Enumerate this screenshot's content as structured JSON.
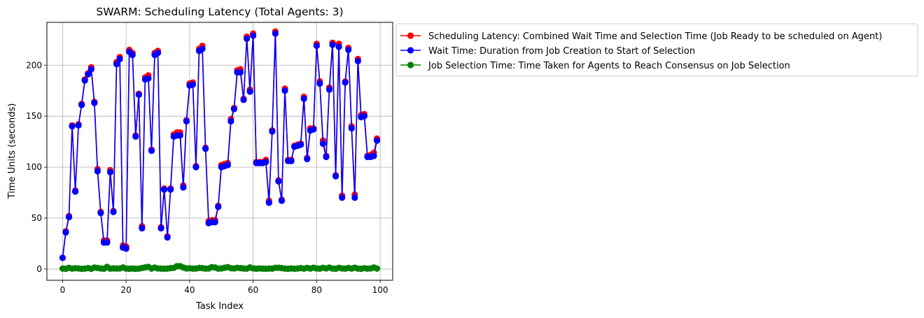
{
  "chart_data": {
    "type": "line",
    "title": "SWARM: Scheduling Latency (Total Agents: 3)",
    "xlabel": "Task Index",
    "ylabel": "Time Units (seconds)",
    "xlim": [
      -4.95,
      103.95
    ],
    "ylim": [
      -11,
      242
    ],
    "xticks": [
      0,
      20,
      40,
      60,
      80,
      100
    ],
    "yticks": [
      0,
      50,
      100,
      150,
      200
    ],
    "grid": true,
    "legend_placement": "outside-upper-right",
    "x": [
      0,
      1,
      2,
      3,
      4,
      5,
      6,
      7,
      8,
      9,
      10,
      11,
      12,
      13,
      14,
      15,
      16,
      17,
      18,
      19,
      20,
      21,
      22,
      23,
      24,
      25,
      26,
      27,
      28,
      29,
      30,
      31,
      32,
      33,
      34,
      35,
      36,
      37,
      38,
      39,
      40,
      41,
      42,
      43,
      44,
      45,
      46,
      47,
      48,
      49,
      50,
      51,
      52,
      53,
      54,
      55,
      56,
      57,
      58,
      59,
      60,
      61,
      62,
      63,
      64,
      65,
      66,
      67,
      68,
      69,
      70,
      71,
      72,
      73,
      74,
      75,
      76,
      77,
      78,
      79,
      80,
      81,
      82,
      83,
      84,
      85,
      86,
      87,
      88,
      89,
      90,
      91,
      92,
      93,
      94,
      95,
      96,
      97,
      98,
      99
    ],
    "series": [
      {
        "name": "Scheduling Latency: Combined Wait Time and Selection Time (Job Ready to be scheduled on Agent)",
        "color": "#ff0000",
        "values": [
          11,
          37,
          52,
          141,
          77,
          142,
          162,
          186,
          192,
          198,
          164,
          98,
          56,
          28,
          28,
          97,
          57,
          203,
          208,
          23,
          22,
          215,
          212,
          131,
          172,
          42,
          188,
          190,
          117,
          212,
          214,
          41,
          79,
          32,
          79,
          132,
          134,
          134,
          82,
          146,
          182,
          183,
          101,
          216,
          219,
          119,
          47,
          48,
          48,
          62,
          102,
          103,
          104,
          147,
          158,
          195,
          196,
          167,
          228,
          176,
          231,
          105,
          105,
          105,
          107,
          67,
          136,
          233,
          87,
          68,
          177,
          107,
          107,
          121,
          122,
          123,
          169,
          109,
          138,
          138,
          221,
          184,
          126,
          111,
          178,
          222,
          92,
          221,
          72,
          184,
          217,
          140,
          73,
          206,
          151,
          152,
          111,
          112,
          114,
          128
        ]
      },
      {
        "name": "Wait Time: Duration from Job Creation to Start of Selection",
        "color": "#0000ff",
        "values": [
          11,
          36,
          51,
          140,
          76,
          141,
          161,
          185,
          191,
          196,
          163,
          96,
          55,
          26,
          26,
          95,
          56,
          201,
          206,
          21,
          20,
          213,
          210,
          130,
          171,
          40,
          186,
          187,
          116,
          210,
          212,
          40,
          78,
          31,
          78,
          130,
          131,
          131,
          80,
          145,
          180,
          181,
          100,
          214,
          216,
          118,
          45,
          46,
          46,
          61,
          100,
          101,
          102,
          145,
          157,
          193,
          193,
          166,
          226,
          174,
          229,
          104,
          104,
          104,
          105,
          65,
          135,
          231,
          86,
          67,
          175,
          106,
          106,
          120,
          121,
          122,
          167,
          108,
          136,
          137,
          219,
          182,
          123,
          110,
          176,
          220,
          91,
          218,
          70,
          183,
          215,
          138,
          70,
          204,
          149,
          150,
          110,
          110,
          111,
          126
        ]
      },
      {
        "name": "Job Selection Time: Time Taken for Agents to Reach Consensus on Job Selection",
        "color": "#008000",
        "values": [
          0.5,
          0.3,
          1.2,
          0.4,
          0.8,
          0.6,
          0.2,
          0.4,
          0.9,
          0.3,
          1.4,
          1.1,
          0.6,
          0.3,
          2.1,
          0.4,
          0.7,
          0.5,
          0.6,
          1.5,
          0.4,
          0.3,
          0.5,
          0.2,
          0.4,
          1.1,
          1.6,
          2.1,
          0.5,
          1.4,
          0.6,
          0.4,
          0.3,
          0.5,
          0.9,
          1.2,
          2.8,
          2.9,
          1.5,
          0.6,
          0.8,
          0.4,
          0.5,
          1.1,
          0.9,
          0.4,
          0.6,
          1.9,
          1.5,
          0.4,
          0.6,
          1.3,
          1.9,
          0.8,
          0.6,
          1.2,
          0.9,
          0.5,
          0.4,
          1.6,
          0.7,
          0.3,
          0.6,
          0.4,
          0.3,
          0.5,
          0.4,
          1.2,
          1.3,
          0.9,
          0.4,
          0.3,
          0.6,
          0.3,
          0.5,
          0.9,
          0.4,
          1.1,
          0.5,
          1.3,
          0.6,
          0.4,
          1.2,
          0.7,
          1.4,
          0.5,
          0.3,
          1.2,
          0.6,
          0.4,
          1.1,
          0.5,
          1.3,
          0.4,
          0.3,
          0.8,
          0.4,
          0.6,
          1.5,
          0.5
        ]
      }
    ]
  }
}
